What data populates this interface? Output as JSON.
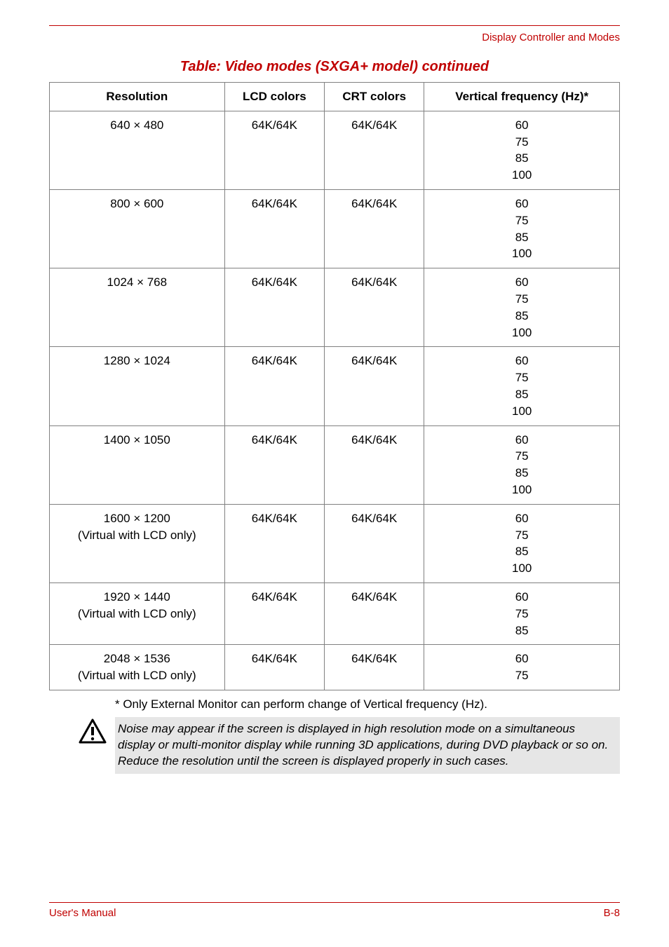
{
  "header": {
    "section": "Display Controller and Modes"
  },
  "table": {
    "title": "Table: Video modes (SXGA+ model) continued",
    "columns": [
      "Resolution",
      "LCD colors",
      "CRT colors",
      "Vertical frequency (Hz)*"
    ],
    "rows": [
      {
        "resolution": "640 × 480",
        "lcd": "64K/64K",
        "crt": "64K/64K",
        "freq": "60\n75\n85\n100"
      },
      {
        "resolution": "800 × 600",
        "lcd": "64K/64K",
        "crt": "64K/64K",
        "freq": "60\n75\n85\n100"
      },
      {
        "resolution": "1024 × 768",
        "lcd": "64K/64K",
        "crt": "64K/64K",
        "freq": "60\n75\n85\n100"
      },
      {
        "resolution": "1280 × 1024",
        "lcd": "64K/64K",
        "crt": "64K/64K",
        "freq": "60\n75\n85\n100"
      },
      {
        "resolution": "1400 × 1050",
        "lcd": "64K/64K",
        "crt": "64K/64K",
        "freq": "60\n75\n85\n100"
      },
      {
        "resolution": "1600 × 1200\n(Virtual with LCD only)",
        "lcd": "64K/64K",
        "crt": "64K/64K",
        "freq": "60\n75\n85\n100"
      },
      {
        "resolution": "1920 × 1440\n(Virtual with LCD only)",
        "lcd": "64K/64K",
        "crt": "64K/64K",
        "freq": "60\n75\n85"
      },
      {
        "resolution": "2048 × 1536\n(Virtual with LCD only)",
        "lcd": "64K/64K",
        "crt": "64K/64K",
        "freq": "60\n75"
      }
    ]
  },
  "footnote": "* Only External Monitor can perform change of Vertical frequency (Hz).",
  "note": "Noise may appear if the screen is displayed in high resolution mode on a simultaneous display or multi-monitor display while running 3D applications, during DVD playback or so on. Reduce the resolution until the screen is displayed properly in such cases.",
  "footer": {
    "left": "User's Manual",
    "right": "B-8"
  },
  "colors": {
    "accent": "#c00000",
    "note_bg": "#e6e6e6",
    "border": "#808080"
  }
}
